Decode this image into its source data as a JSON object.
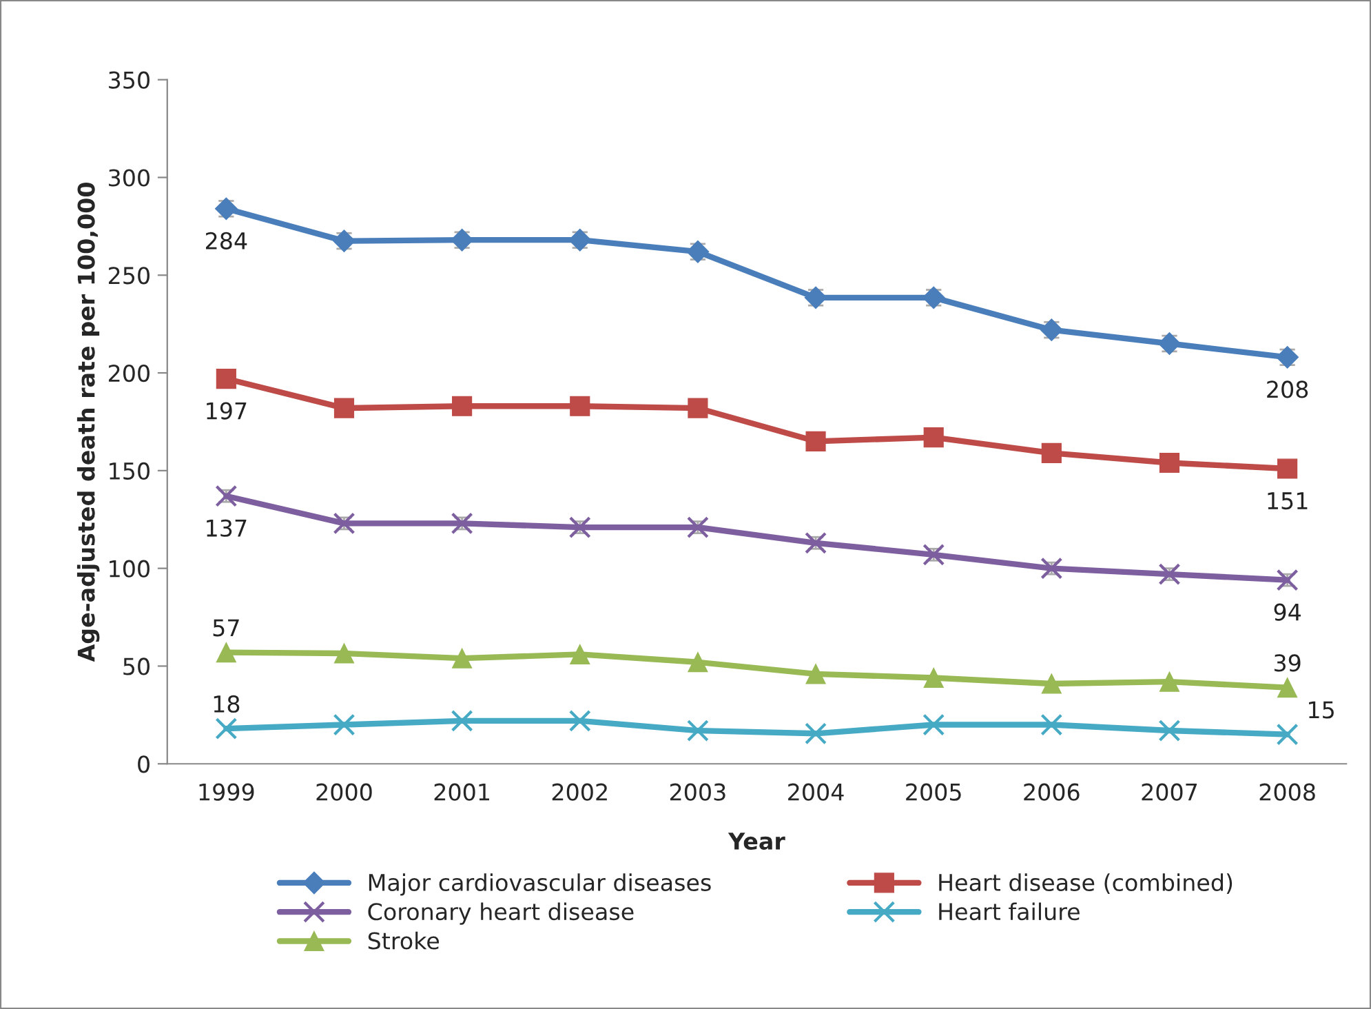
{
  "chart_data": {
    "type": "line",
    "xlabel": "Year",
    "ylabel": "Age-adjusted death rate per 100,000",
    "categories": [
      "1999",
      "2000",
      "2001",
      "2002",
      "2003",
      "2004",
      "2005",
      "2006",
      "2007",
      "2008"
    ],
    "ylim": [
      0,
      350
    ],
    "yticks": [
      0,
      50,
      100,
      150,
      200,
      250,
      300,
      350
    ],
    "grid": false,
    "legend": "bottom",
    "series": [
      {
        "name": "Major cardiovascular diseases",
        "color": "#4a7ebb",
        "marker": "diamond",
        "values": [
          284,
          267.5,
          268,
          268,
          262,
          238.5,
          238.5,
          222,
          215,
          208
        ],
        "errors": [
          4,
          4,
          4,
          4,
          4,
          4,
          4,
          4,
          4,
          4
        ],
        "value_labels": [
          "284",
          null,
          null,
          null,
          null,
          null,
          null,
          null,
          null,
          "208"
        ]
      },
      {
        "name": "Heart disease (combined)",
        "color": "#be4b48",
        "marker": "square",
        "values": [
          197,
          182,
          183,
          183,
          182,
          165,
          167,
          159,
          154,
          151
        ],
        "value_labels": [
          "197",
          null,
          null,
          null,
          null,
          null,
          null,
          null,
          null,
          "151"
        ]
      },
      {
        "name": "Coronary heart disease",
        "color": "#7d5fa0",
        "marker": "cross",
        "values": [
          137,
          123,
          123,
          121,
          121,
          113,
          107,
          100,
          97,
          94
        ],
        "errors": [
          3,
          3,
          3,
          3,
          3,
          3,
          3,
          3,
          3,
          3
        ],
        "value_labels": [
          "137",
          null,
          null,
          null,
          null,
          null,
          null,
          null,
          null,
          "94"
        ]
      },
      {
        "name": "Heart failure",
        "color": "#46aac5",
        "marker": "cross",
        "values": [
          18,
          20,
          22,
          22,
          17,
          15.5,
          20,
          20,
          17,
          15
        ],
        "value_labels": [
          "18",
          null,
          null,
          null,
          null,
          null,
          null,
          null,
          null,
          "15"
        ]
      },
      {
        "name": "Stroke",
        "color": "#98b954",
        "marker": "triangle",
        "values": [
          57,
          56.5,
          54,
          56,
          52,
          46,
          44,
          41,
          42,
          39
        ],
        "value_labels": [
          "57",
          null,
          null,
          null,
          null,
          null,
          null,
          null,
          null,
          "39"
        ]
      }
    ]
  }
}
